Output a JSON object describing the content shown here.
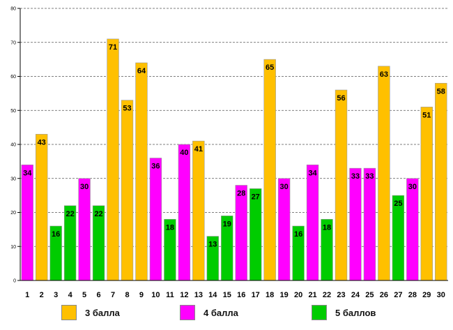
{
  "chart_data": {
    "type": "bar",
    "title": "",
    "xlabel": "",
    "ylabel": "",
    "ylim": [
      0,
      80
    ],
    "yticks": [
      0,
      10,
      20,
      30,
      40,
      50,
      60,
      70,
      80
    ],
    "grid": true,
    "legend_position": "bottom",
    "categories": [
      "1",
      "2",
      "3",
      "4",
      "5",
      "6",
      "7",
      "8",
      "9",
      "10",
      "11",
      "12",
      "13",
      "14",
      "15",
      "16",
      "17",
      "18",
      "19",
      "20",
      "21",
      "22",
      "23",
      "24",
      "25",
      "26",
      "27",
      "28",
      "29",
      "30"
    ],
    "values": [
      34,
      43,
      16,
      22,
      30,
      22,
      71,
      53,
      64,
      36,
      18,
      40,
      41,
      13,
      19,
      28,
      27,
      65,
      30,
      16,
      34,
      18,
      56,
      33,
      33,
      63,
      25,
      30,
      51,
      58
    ],
    "bar_series": [
      "4 балла",
      "3 балла",
      "5 баллов",
      "5 баллов",
      "4 балла",
      "5 баллов",
      "3 балла",
      "3 балла",
      "3 балла",
      "4 балла",
      "5 баллов",
      "4 балла",
      "3 балла",
      "5 баллов",
      "5 баллов",
      "4 балла",
      "5 баллов",
      "3 балла",
      "4 балла",
      "5 баллов",
      "4 балла",
      "5 баллов",
      "3 балла",
      "4 балла",
      "4 балла",
      "3 балла",
      "5 баллов",
      "4 балла",
      "3 балла",
      "3 балла"
    ],
    "series": [
      {
        "name": "3 балла",
        "color": "#FFC000"
      },
      {
        "name": "4 балла",
        "color": "#FF00FF"
      },
      {
        "name": "5 баллов",
        "color": "#00CC00"
      }
    ]
  }
}
